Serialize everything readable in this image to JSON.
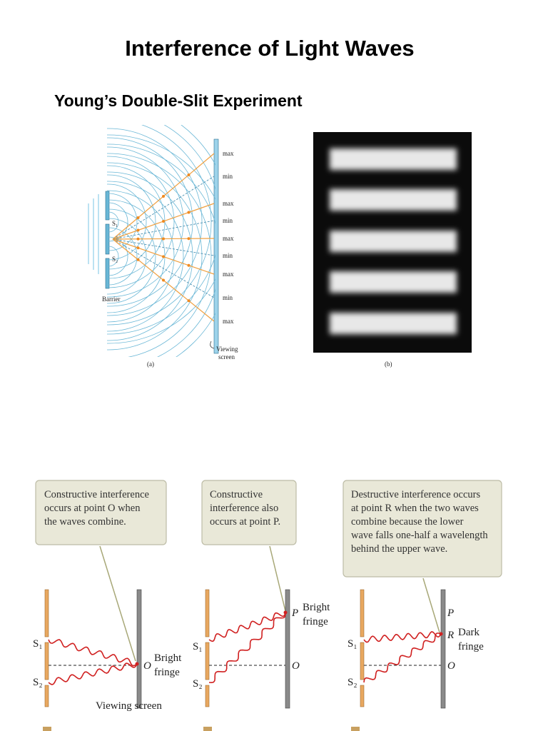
{
  "header": {
    "title": "Interference of Light Waves",
    "subtitle": "Young’s Double-Slit Experiment"
  },
  "figure_a": {
    "fringe_labels": [
      "max",
      "min",
      "max",
      "min",
      "max",
      "min",
      "max",
      "min",
      "max"
    ],
    "slit_labels": [
      "S₁",
      "S₂"
    ],
    "barrier_label": "Barrier",
    "screen_label": [
      "Viewing",
      "screen"
    ],
    "caption": "(a)"
  },
  "figure_b": {
    "caption": "(b)"
  },
  "panels": [
    {
      "callout": [
        "Constructive interference",
        "occurs at point O when",
        "the waves combine."
      ],
      "s1": "S₁",
      "s2": "S₂",
      "point_o": "O",
      "fringe": [
        "Bright",
        "fringe"
      ],
      "screen": "Viewing screen"
    },
    {
      "callout": [
        "Constructive",
        "interference also",
        "occurs at point P."
      ],
      "s1": "S₁",
      "s2": "S₂",
      "point_p": "P",
      "point_o": "O",
      "fringe": [
        "Bright",
        "fringe"
      ]
    },
    {
      "callout": [
        "Destructive interference occurs",
        "at point R when the two waves",
        "combine because the lower",
        "wave falls one-half a wavelength",
        "behind the upper wave."
      ],
      "s1": "S₁",
      "s2": "S₂",
      "point_p": "P",
      "point_r": "R",
      "point_o": "O",
      "fringe": [
        "Dark",
        "fringe"
      ]
    }
  ]
}
